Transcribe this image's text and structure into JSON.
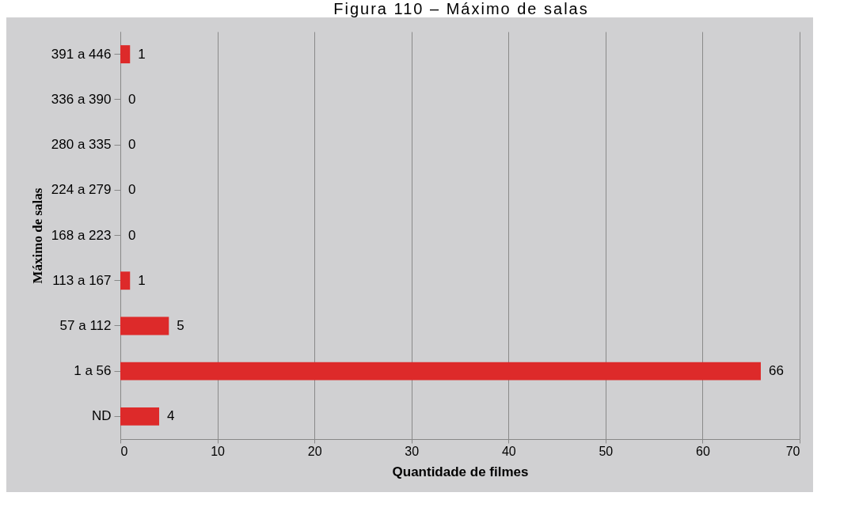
{
  "chart_data": {
    "type": "bar",
    "orientation": "horizontal",
    "title": "Figura 110 – Máximo de salas",
    "xlabel": "Quantidade de filmes",
    "ylabel": "Máximo de salas",
    "categories": [
      "391 a 446",
      "336 a 390",
      "280 a 335",
      "224 a 279",
      "168 a 223",
      "113 a 167",
      "57 a 112",
      "1 a 56",
      "ND"
    ],
    "values": [
      1,
      0,
      0,
      0,
      0,
      1,
      5,
      66,
      4
    ],
    "color": "#dd2a2a",
    "xlim": [
      0,
      70
    ],
    "xticks": [
      0,
      10,
      20,
      30,
      40,
      50,
      60,
      70
    ],
    "grid": "x",
    "data_labels": true
  }
}
